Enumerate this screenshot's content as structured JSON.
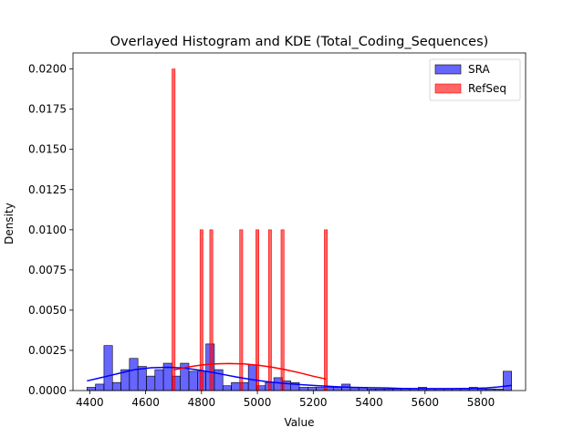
{
  "chart_data": {
    "type": "histogram",
    "title": "Overlayed Histogram and KDE (Total_Coding_Sequences)",
    "xlabel": "Value",
    "ylabel": "Density",
    "xlim": [
      4340,
      5960
    ],
    "ylim": [
      0,
      0.021
    ],
    "xticks": [
      4400,
      4600,
      4800,
      5000,
      5200,
      5400,
      5600,
      5800
    ],
    "yticks": [
      0.0,
      0.0025,
      0.005,
      0.0075,
      0.01,
      0.0125,
      0.015,
      0.0175,
      0.02
    ],
    "ytick_labels": [
      "0.0000",
      "0.0025",
      "0.0050",
      "0.0075",
      "0.0100",
      "0.0125",
      "0.0150",
      "0.0175",
      "0.0200"
    ],
    "grid": false,
    "legend_position": "top-right",
    "series": [
      {
        "name": "SRA",
        "color": "#0000ff",
        "bin_start": 4390,
        "bin_width": 30.4,
        "values": [
          0.0002,
          0.0004,
          0.0028,
          0.0005,
          0.0013,
          0.002,
          0.0015,
          0.0009,
          0.0013,
          0.0017,
          0.0009,
          0.0017,
          0.0012,
          0.0012,
          0.0029,
          0.0013,
          0.0003,
          0.0005,
          0.0005,
          0.0016,
          0.0003,
          0.0005,
          0.0008,
          0.0006,
          0.0005,
          0.0002,
          0.0002,
          0.0002,
          0.0002,
          0.0002,
          0.0004,
          0.0002,
          0.0002,
          0.0001,
          0.0001,
          0.0001,
          0.0001,
          0.0001,
          0.0001,
          0.0002,
          0.0001,
          0.0001,
          0.0001,
          0.0001,
          0.0001,
          0.0002,
          0.0001,
          0.0001,
          0.0001,
          0.0012
        ],
        "kde": {
          "x": [
            4390,
            4440,
            4500,
            4560,
            4620,
            4680,
            4740,
            4800,
            4860,
            4920,
            4980,
            5040,
            5100,
            5160,
            5220,
            5280,
            5340,
            5400,
            5460,
            5520,
            5580,
            5640,
            5700,
            5760,
            5820,
            5860,
            5910
          ],
          "y": [
            0.0006,
            0.0008,
            0.00105,
            0.0013,
            0.00142,
            0.00145,
            0.0014,
            0.00125,
            0.00106,
            0.00086,
            0.00068,
            0.00054,
            0.00044,
            0.00036,
            0.0003,
            0.00024,
            0.0002,
            0.00018,
            0.00016,
            0.00013,
            0.00012,
            0.00012,
            0.00012,
            0.00013,
            0.00016,
            0.00022,
            0.00032
          ]
        }
      },
      {
        "name": "RefSeq",
        "color": "#ff0000",
        "bin_width": 10.8,
        "bars": [
          {
            "x": 4700,
            "value": 0.02
          },
          {
            "x": 4800,
            "value": 0.01
          },
          {
            "x": 4835,
            "value": 0.01
          },
          {
            "x": 4942,
            "value": 0.01
          },
          {
            "x": 5000,
            "value": 0.01
          },
          {
            "x": 5045,
            "value": 0.01
          },
          {
            "x": 5090,
            "value": 0.01
          },
          {
            "x": 5245,
            "value": 0.01
          }
        ],
        "kde": {
          "x": [
            4700,
            4750,
            4800,
            4850,
            4900,
            4950,
            5000,
            5050,
            5100,
            5150,
            5200,
            5245
          ],
          "y": [
            0.00128,
            0.00146,
            0.00159,
            0.00166,
            0.00168,
            0.00166,
            0.00158,
            0.00146,
            0.0013,
            0.00111,
            0.00089,
            0.00072
          ]
        }
      }
    ]
  }
}
